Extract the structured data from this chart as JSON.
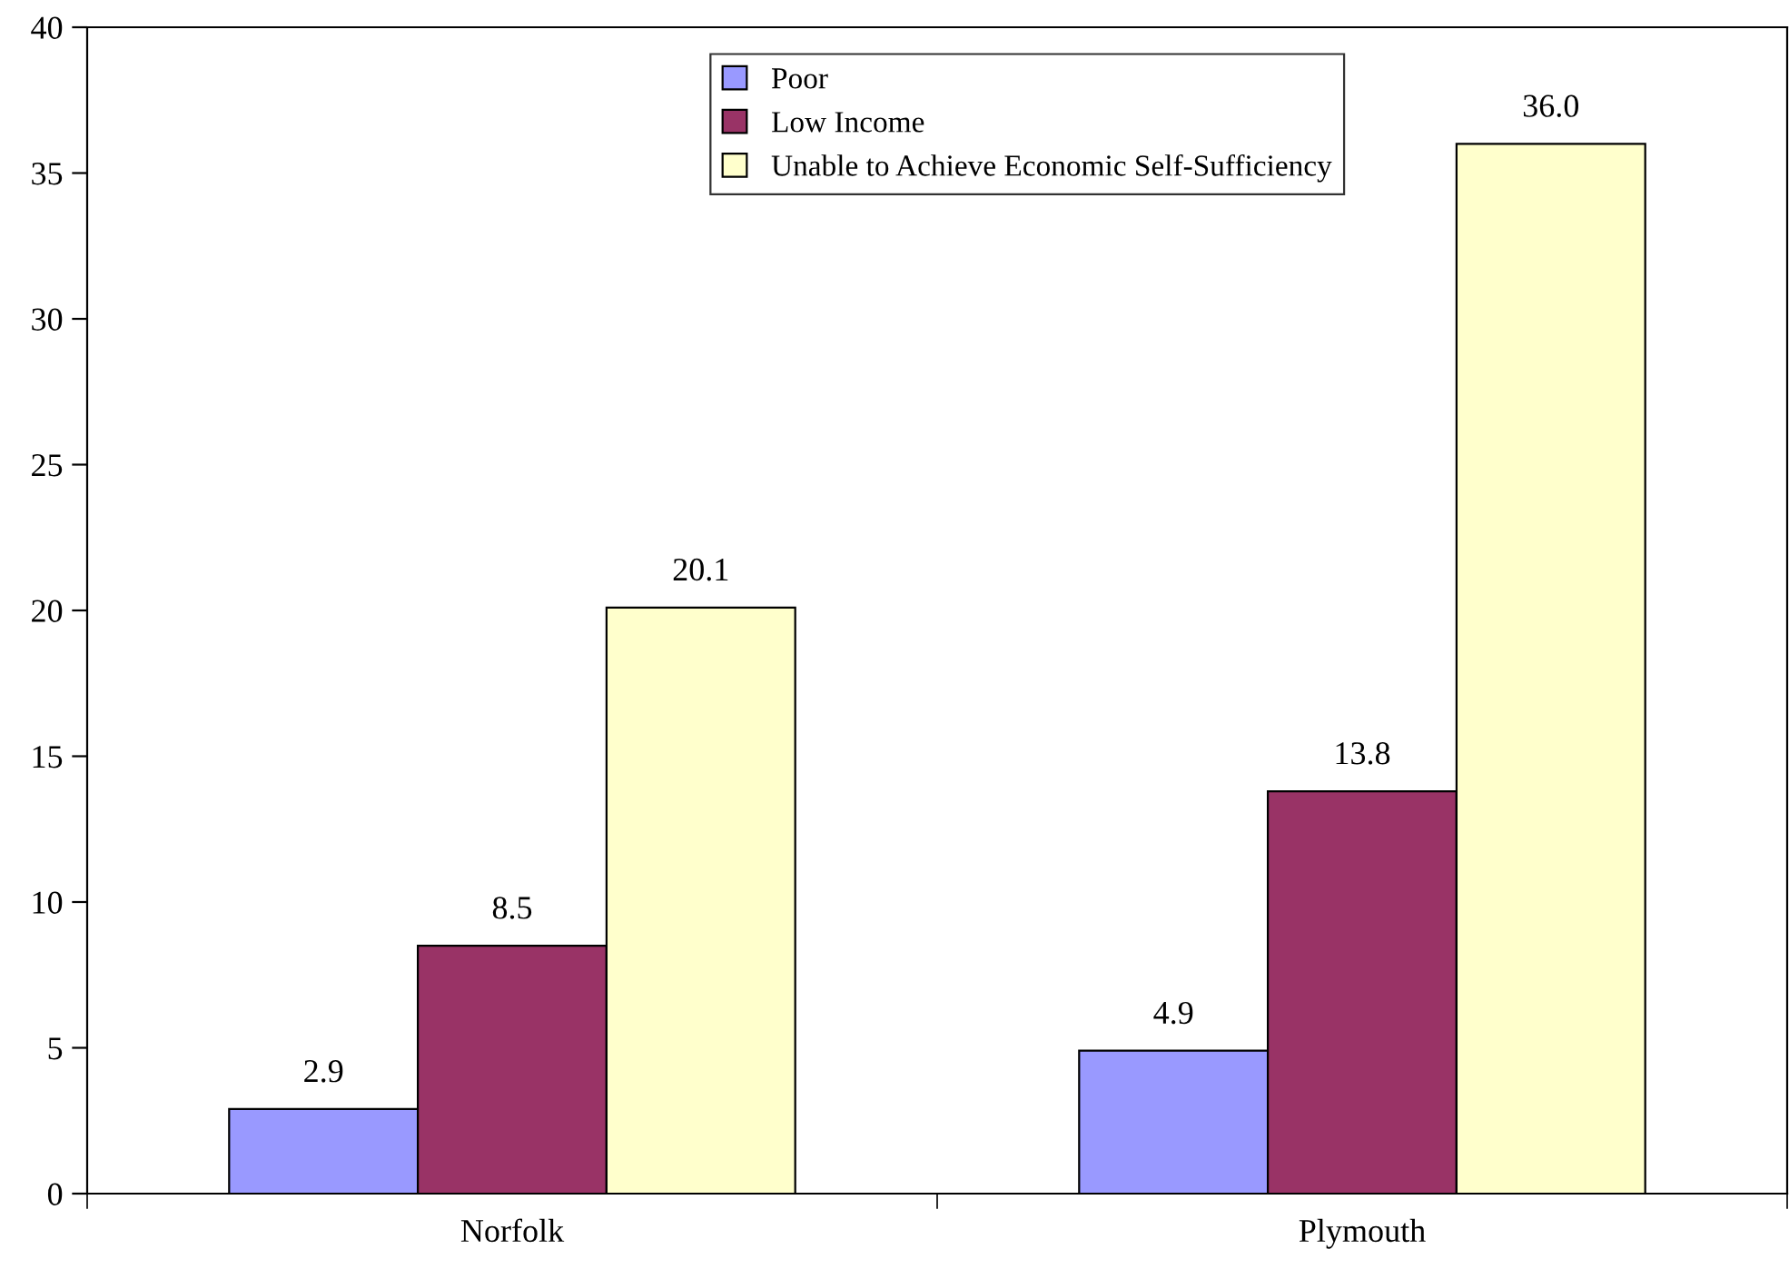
{
  "chart_data": {
    "type": "bar",
    "categories": [
      "Norfolk",
      "Plymouth"
    ],
    "series": [
      {
        "name": "Poor",
        "color": "#9999ff",
        "values": [
          2.9,
          4.9
        ],
        "value_labels": [
          "2.9",
          "4.9"
        ]
      },
      {
        "name": "Low Income",
        "color": "#993366",
        "values": [
          8.5,
          13.8
        ],
        "value_labels": [
          "8.5",
          "13.8"
        ]
      },
      {
        "name": "Unable to Achieve Economic Self-Sufficiency",
        "color": "#ffffcc",
        "values": [
          20.1,
          36
        ],
        "value_labels": [
          "20.1",
          "36.0"
        ]
      }
    ],
    "ylim": [
      0,
      40
    ],
    "yticks": [
      0,
      5,
      10,
      15,
      20,
      25,
      30,
      35,
      40
    ],
    "grid": false,
    "legend": "top"
  }
}
